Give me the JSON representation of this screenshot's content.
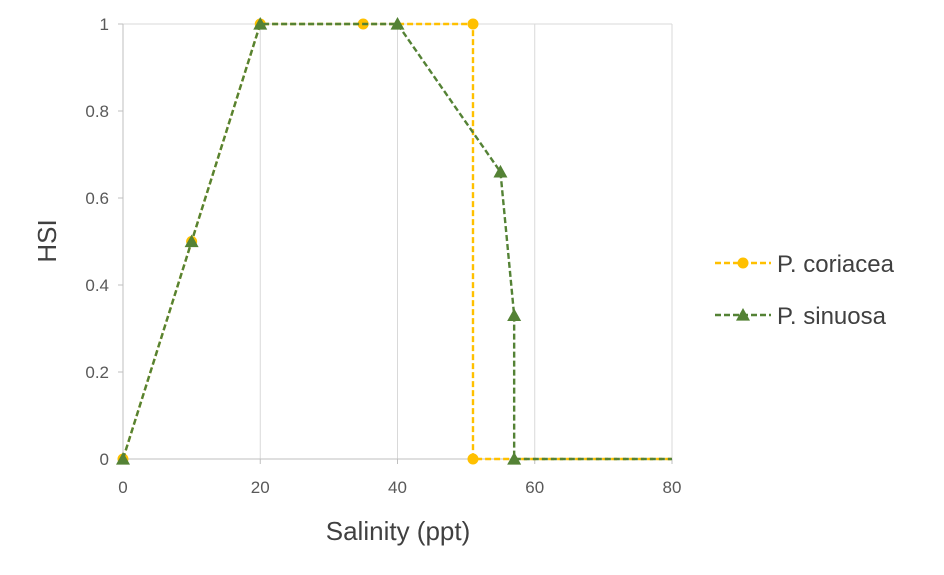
{
  "chart_data": {
    "type": "line",
    "xlabel": "Salinity (ppt)",
    "ylabel": "HSI",
    "xlim": [
      0,
      80
    ],
    "ylim": [
      0,
      1
    ],
    "x_ticks": [
      "0",
      "20",
      "40",
      "60",
      "80"
    ],
    "y_ticks": [
      "0",
      "0.2",
      "0.4",
      "0.6",
      "0.8",
      "1"
    ],
    "grid": "vertical",
    "legend_position": "right",
    "series": [
      {
        "name": "P. coriacea",
        "color": "#FFC000",
        "marker": "circle",
        "line_style": "dashed",
        "x": [
          0,
          10,
          20,
          35,
          51,
          51,
          80
        ],
        "y": [
          0,
          0.5,
          1,
          1,
          1,
          0,
          0
        ],
        "markers_at": [
          0,
          1,
          2,
          3,
          4,
          5
        ]
      },
      {
        "name": "P. sinuosa",
        "color": "#548235",
        "marker": "triangle",
        "line_style": "dashed",
        "x": [
          0,
          10,
          20,
          40,
          55,
          57,
          57,
          80
        ],
        "y": [
          0,
          0.5,
          1,
          1,
          0.66,
          0.33,
          0,
          0
        ],
        "markers_at": [
          0,
          1,
          2,
          3,
          4,
          5,
          6
        ]
      }
    ]
  }
}
